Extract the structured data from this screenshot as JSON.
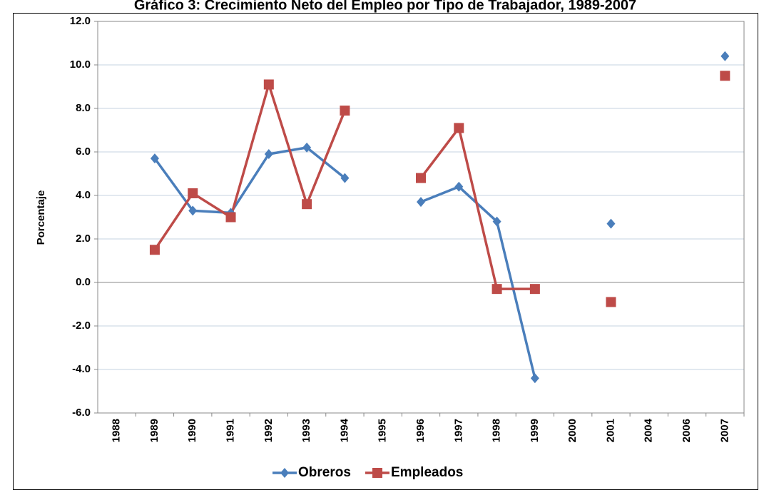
{
  "chart_data": {
    "type": "line",
    "title": "Gráfico 3: Crecimiento Neto del Empleo por Tipo de Trabajador, 1989-2007",
    "y_label": "Porcentaje",
    "categories": [
      "1988",
      "1989",
      "1990",
      "1991",
      "1992",
      "1993",
      "1994",
      "1995",
      "1996",
      "1997",
      "1998",
      "1999",
      "2000",
      "2001",
      "2004",
      "2006",
      "2007"
    ],
    "series": [
      {
        "name": "Obreros",
        "color": "#4a7ebb",
        "marker": "diamond",
        "values": [
          null,
          5.7,
          3.3,
          3.2,
          5.9,
          6.2,
          4.8,
          null,
          3.7,
          4.4,
          2.8,
          -4.4,
          null,
          2.7,
          null,
          null,
          10.4
        ]
      },
      {
        "name": "Empleados",
        "color": "#be4b48",
        "marker": "square",
        "values": [
          null,
          1.5,
          4.1,
          3.0,
          9.1,
          3.6,
          7.9,
          null,
          4.8,
          7.1,
          -0.3,
          -0.3,
          null,
          -0.9,
          null,
          null,
          9.5
        ]
      }
    ],
    "ylim": [
      -6,
      12
    ],
    "yticks": [
      {
        "value": -6,
        "label": "-6.0"
      },
      {
        "value": -4,
        "label": "-4.0"
      },
      {
        "value": -2,
        "label": "-2.0"
      },
      {
        "value": 0,
        "label": "0.0"
      },
      {
        "value": 2,
        "label": "2.0"
      },
      {
        "value": 4,
        "label": "4.0"
      },
      {
        "value": 6,
        "label": "6.0"
      },
      {
        "value": 8,
        "label": "8.0"
      },
      {
        "value": 10,
        "label": "10.0"
      },
      {
        "value": 12,
        "label": "12.0"
      }
    ],
    "grid": true,
    "legend": "bottom"
  }
}
